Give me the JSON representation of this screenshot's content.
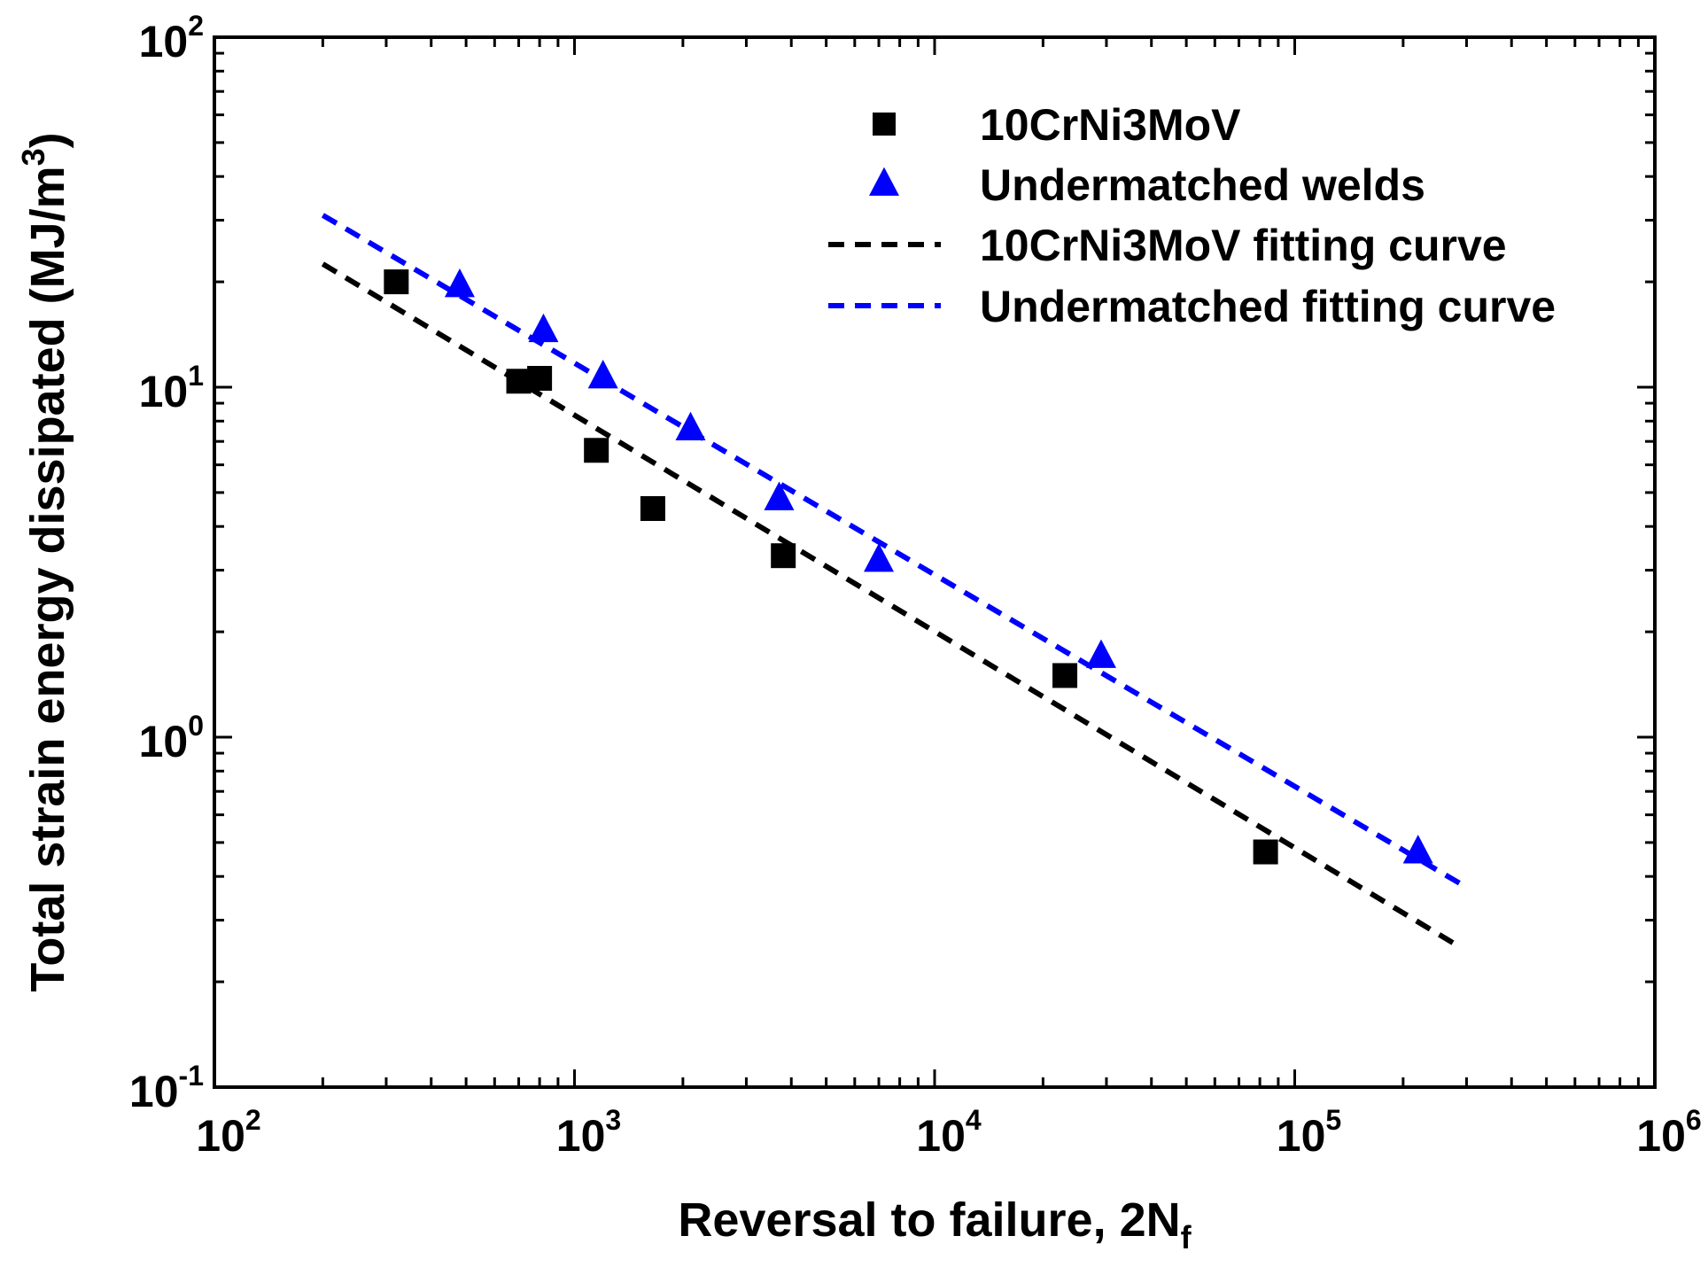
{
  "colors": {
    "background": "#ffffff",
    "axis": "#000000",
    "series_base": "#000000",
    "series_weld": "#0000ff"
  },
  "chart_data": {
    "type": "scatter",
    "title": "",
    "xlabel": {
      "main": "Reversal to failure, 2N",
      "sub": "f"
    },
    "ylabel": {
      "main": "Total strain energy dissipated (MJ/m",
      "sup": "3",
      "tail": ")"
    },
    "xscale": "log",
    "yscale": "log",
    "xlim": [
      100,
      1000000
    ],
    "ylim": [
      0.1,
      100
    ],
    "x_ticks": [
      {
        "value": 100,
        "base": "10",
        "exp": "2"
      },
      {
        "value": 1000,
        "base": "10",
        "exp": "3"
      },
      {
        "value": 10000,
        "base": "10",
        "exp": "4"
      },
      {
        "value": 100000,
        "base": "10",
        "exp": "5"
      },
      {
        "value": 1000000,
        "base": "10",
        "exp": "6"
      }
    ],
    "y_ticks": [
      {
        "value": 0.1,
        "base": "10",
        "exp": "-1"
      },
      {
        "value": 1,
        "base": "10",
        "exp": "0"
      },
      {
        "value": 10,
        "base": "10",
        "exp": "1"
      },
      {
        "value": 100,
        "base": "10",
        "exp": "2"
      }
    ],
    "grid": false,
    "legend_position": "top-right",
    "series": [
      {
        "name": "10CrNi3MoV",
        "kind": "scatter",
        "marker": "square",
        "color": "#000000",
        "points": [
          {
            "x": 320,
            "y": 20.0
          },
          {
            "x": 700,
            "y": 10.4
          },
          {
            "x": 800,
            "y": 10.6
          },
          {
            "x": 1150,
            "y": 6.6
          },
          {
            "x": 1650,
            "y": 4.5
          },
          {
            "x": 3800,
            "y": 3.3
          },
          {
            "x": 23000,
            "y": 1.5
          },
          {
            "x": 83000,
            "y": 0.47
          }
        ]
      },
      {
        "name": "Undermatched welds",
        "kind": "scatter",
        "marker": "triangle",
        "color": "#0000ff",
        "points": [
          {
            "x": 480,
            "y": 19.5
          },
          {
            "x": 820,
            "y": 14.5
          },
          {
            "x": 1200,
            "y": 10.7
          },
          {
            "x": 2100,
            "y": 7.6
          },
          {
            "x": 3700,
            "y": 4.8
          },
          {
            "x": 7000,
            "y": 3.2
          },
          {
            "x": 29000,
            "y": 1.7
          },
          {
            "x": 220000,
            "y": 0.47
          }
        ]
      },
      {
        "name": "10CrNi3MoV fitting curve",
        "kind": "line",
        "dashed": true,
        "color": "#000000",
        "points": [
          {
            "x": 200,
            "y": 22.5
          },
          {
            "x": 290000,
            "y": 0.25
          }
        ]
      },
      {
        "name": " Undermatched fitting curve",
        "kind": "line",
        "dashed": true,
        "color": "#0000ff",
        "points": [
          {
            "x": 200,
            "y": 31.0
          },
          {
            "x": 290000,
            "y": 0.38
          }
        ]
      }
    ]
  }
}
